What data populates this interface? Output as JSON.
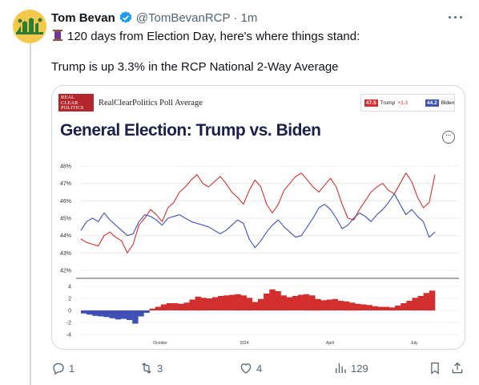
{
  "tweet": {
    "author_name": "Tom Bevan",
    "handle": "@TomBevanRCP",
    "separator": "·",
    "time": "1m",
    "text_line1": "120 days from Election Day, here's where things stand:",
    "text_line2": "Trump is up 3.3% in the RCP National 2-Way Average",
    "more_label": "···"
  },
  "card": {
    "logo_lines": [
      "REAL",
      "CLEAR",
      "POLITICS"
    ],
    "subtitle": "RealClearPolitics Poll Average",
    "title": "General Election: Trump vs. Biden",
    "menu_label": "···",
    "legend": {
      "trump_value": "47.5",
      "trump_label": "Trump",
      "trump_spread": "+3.3",
      "biden_value": "44.2",
      "biden_label": "Biden"
    }
  },
  "chart_data": [
    {
      "type": "line",
      "title": "General Election: Trump vs. Biden",
      "ylim": [
        42,
        48
      ],
      "y_ticks": [
        "48%",
        "47%",
        "46%",
        "45%",
        "44%",
        "43%",
        "42%"
      ],
      "x_ticks": [
        "October",
        "2024",
        "April",
        "July"
      ],
      "series": [
        {
          "name": "Trump",
          "color": "#d32f2f",
          "values": [
            43.8,
            43.6,
            43.5,
            43.4,
            44.0,
            44.2,
            43.9,
            43.7,
            43.0,
            43.5,
            44.6,
            45.0,
            45.5,
            45.2,
            44.8,
            45.6,
            45.9,
            46.5,
            46.8,
            47.2,
            47.5,
            47.0,
            46.8,
            47.1,
            47.4,
            47.0,
            46.5,
            46.2,
            45.8,
            46.6,
            47.2,
            46.8,
            45.8,
            45.3,
            45.8,
            46.6,
            47.0,
            47.4,
            47.6,
            47.2,
            46.8,
            46.5,
            46.9,
            47.3,
            46.8,
            45.8,
            45.0,
            44.9,
            45.5,
            46.0,
            46.5,
            46.8,
            47.0,
            46.6,
            46.4,
            47.0,
            47.6,
            47.1,
            46.2,
            45.6,
            45.9,
            47.5
          ]
        },
        {
          "name": "Biden",
          "color": "#3f51b5",
          "values": [
            44.3,
            44.8,
            45.0,
            44.8,
            45.3,
            44.9,
            44.6,
            44.3,
            44.0,
            44.1,
            44.8,
            45.2,
            45.1,
            44.9,
            44.6,
            45.0,
            45.1,
            45.2,
            45.0,
            44.8,
            44.7,
            44.6,
            44.5,
            44.3,
            44.1,
            44.3,
            44.6,
            44.9,
            44.7,
            43.8,
            43.3,
            43.7,
            44.2,
            44.6,
            44.9,
            44.5,
            44.2,
            43.9,
            44.0,
            44.5,
            45.0,
            45.6,
            45.8,
            45.5,
            45.0,
            44.4,
            44.6,
            45.0,
            45.3,
            45.1,
            44.8,
            45.2,
            45.5,
            45.9,
            46.4,
            45.8,
            45.2,
            45.5,
            45.1,
            44.8,
            43.9,
            44.2
          ]
        }
      ]
    },
    {
      "type": "bar",
      "title": "",
      "ylim": [
        -4,
        4
      ],
      "y_ticks": [
        "4",
        "2",
        "0",
        "-2",
        "-4"
      ],
      "series": [
        {
          "name": "spread",
          "values": [
            -0.5,
            -0.7,
            -0.9,
            -1.0,
            -1.1,
            -1.3,
            -1.5,
            -1.4,
            -1.6,
            -2.2,
            -1.0,
            -0.4,
            0.3,
            0.6,
            1.0,
            1.2,
            1.2,
            1.1,
            1.3,
            1.8,
            2.3,
            2.1,
            2.0,
            2.2,
            2.4,
            2.5,
            2.6,
            2.7,
            2.5,
            2.1,
            1.4,
            1.9,
            2.8,
            3.5,
            3.2,
            2.5,
            2.2,
            2.4,
            2.6,
            2.7,
            2.5,
            1.9,
            1.7,
            1.8,
            1.9,
            1.6,
            1.5,
            1.3,
            1.1,
            1.0,
            0.9,
            0.7,
            0.6,
            0.6,
            0.5,
            0.8,
            1.2,
            1.6,
            2.1,
            2.4,
            2.9,
            3.3
          ]
        }
      ]
    }
  ],
  "actions": {
    "reply_count": "1",
    "retweet_count": "3",
    "like_count": "4",
    "views_count": "129"
  },
  "colors": {
    "trump": "#d32f2f",
    "biden": "#3f51b5",
    "verified": "#1d9bf0",
    "chart_title": "#1a1f4b"
  }
}
